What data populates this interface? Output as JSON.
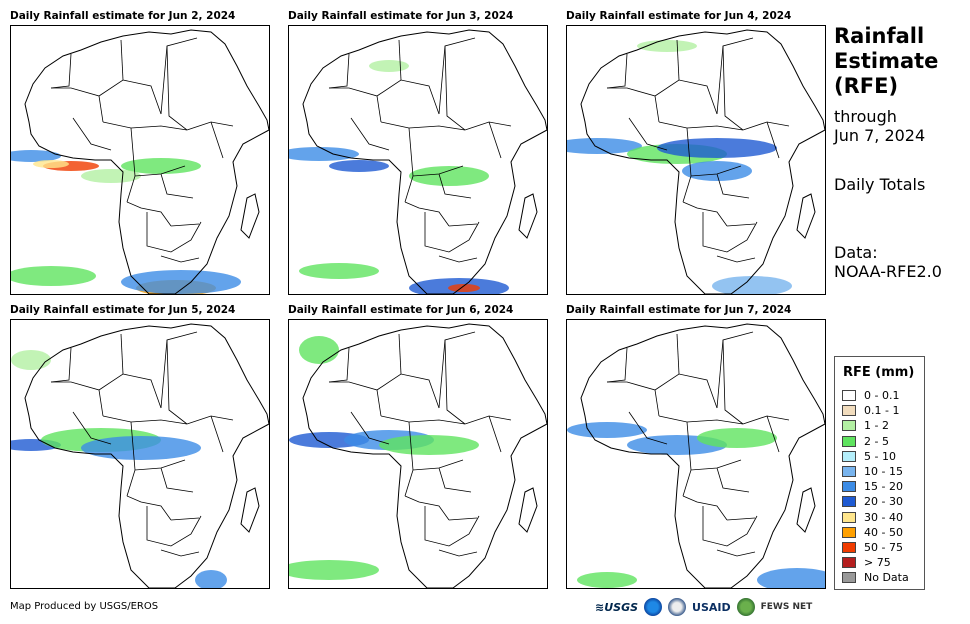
{
  "panels": [
    {
      "title": "Daily Rainfall estimate for Jun 2, 2024"
    },
    {
      "title": "Daily Rainfall estimate for Jun 3, 2024"
    },
    {
      "title": "Daily Rainfall estimate for Jun 4, 2024"
    },
    {
      "title": "Daily Rainfall estimate for Jun 5, 2024"
    },
    {
      "title": "Daily Rainfall estimate for Jun 6, 2024"
    },
    {
      "title": "Daily Rainfall estimate for Jun 7, 2024"
    }
  ],
  "side": {
    "title_line1": "Rainfall",
    "title_line2": "Estimate",
    "title_line3": "(RFE)",
    "through": "through",
    "date": "Jun 7, 2024",
    "totals": "Daily Totals",
    "data_label": "Data:",
    "data_source": "NOAA-RFE2.0"
  },
  "legend": {
    "title": "RFE (mm)",
    "items": [
      {
        "label": "0 - 0.1",
        "color": "#ffffff"
      },
      {
        "label": "0.1 - 1",
        "color": "#f1dcbd"
      },
      {
        "label": "1 - 2",
        "color": "#b3f0a3"
      },
      {
        "label": "2 - 5",
        "color": "#5fe35f"
      },
      {
        "label": "5 - 10",
        "color": "#b4eefa"
      },
      {
        "label": "10 - 15",
        "color": "#78b4ee"
      },
      {
        "label": "15 - 20",
        "color": "#3c8ce6"
      },
      {
        "label": "20 - 30",
        "color": "#1e5ad2"
      },
      {
        "label": "30 - 40",
        "color": "#ffe68c"
      },
      {
        "label": "40 - 50",
        "color": "#ffa000"
      },
      {
        "label": "50 - 75",
        "color": "#f03c00"
      },
      {
        "label": "> 75",
        "color": "#b41e1e"
      },
      {
        "label": "No Data",
        "color": "#999999"
      }
    ]
  },
  "footer": {
    "credit": "Map Produced by USGS/EROS"
  },
  "logos": {
    "usgs": "≋USGS",
    "usaid": "USAID",
    "fews": "FEWS NET"
  }
}
